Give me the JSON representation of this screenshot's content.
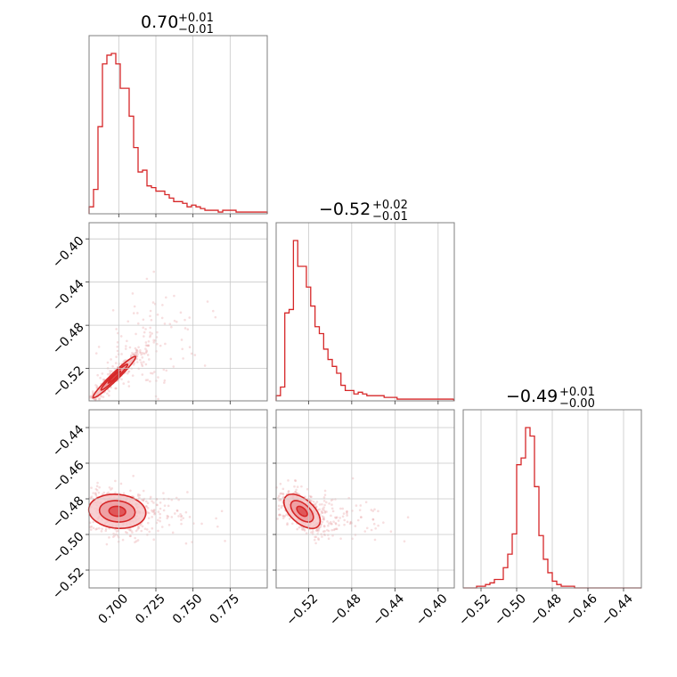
{
  "colors": {
    "series": "#d62728",
    "fill": "#f6c6c8",
    "fill_dark": "#ed9a9e",
    "sample": "#e8a0a3"
  },
  "chart_data": {
    "type": "corner",
    "parameters": [
      {
        "range": [
          0.68,
          0.8
        ],
        "ticks": [
          0.7,
          0.725,
          0.75,
          0.775
        ],
        "tick_labels": [
          "0.700",
          "0.725",
          "0.750",
          "0.775"
        ],
        "summary": {
          "median": "0.70",
          "plus": "+0.01",
          "minus": "−0.01"
        }
      },
      {
        "range": [
          -0.55,
          -0.385
        ],
        "ticks": [
          -0.52,
          -0.48,
          -0.44,
          -0.4
        ],
        "tick_labels": [
          "−0.52",
          "−0.48",
          "−0.44",
          "−0.40"
        ],
        "summary": {
          "median": "−0.52",
          "plus": "+0.02",
          "minus": "−0.01"
        }
      },
      {
        "range": [
          -0.53,
          -0.43
        ],
        "ticks": [
          -0.52,
          -0.5,
          -0.48,
          -0.46,
          -0.44
        ],
        "tick_labels": [
          "−0.52",
          "−0.50",
          "−0.48",
          "−0.46",
          "−0.44"
        ],
        "summary": {
          "median": "−0.49",
          "plus": "+0.01",
          "minus": "−0.00"
        }
      }
    ],
    "histograms": [
      {
        "param": 0,
        "edges_start": 0.68,
        "bin_width": 0.003,
        "counts": [
          0.04,
          0.14,
          0.5,
          0.86,
          0.91,
          0.92,
          0.86,
          0.72,
          0.72,
          0.56,
          0.38,
          0.24,
          0.25,
          0.16,
          0.15,
          0.13,
          0.13,
          0.11,
          0.09,
          0.07,
          0.07,
          0.06,
          0.04,
          0.05,
          0.04,
          0.03,
          0.02,
          0.02,
          0.02,
          0.01,
          0.02,
          0.02,
          0.02,
          0.01,
          0.01,
          0.01,
          0.01,
          0.01,
          0.01,
          0.01
        ]
      },
      {
        "param": 1,
        "edges_start": -0.55,
        "bin_width": 0.004,
        "counts": [
          0.03,
          0.08,
          0.51,
          0.53,
          0.93,
          0.78,
          0.78,
          0.66,
          0.55,
          0.43,
          0.39,
          0.3,
          0.24,
          0.2,
          0.16,
          0.09,
          0.06,
          0.06,
          0.04,
          0.05,
          0.04,
          0.03,
          0.03,
          0.03,
          0.03,
          0.02,
          0.02,
          0.02,
          0.01,
          0.01,
          0.01,
          0.01,
          0.01,
          0.01,
          0.01,
          0.01,
          0.01,
          0.01,
          0.01,
          0.01,
          0.01
        ]
      },
      {
        "param": 2,
        "edges_start": -0.53,
        "bin_width": 0.0025,
        "counts": [
          0,
          0,
          0,
          0.01,
          0.01,
          0.02,
          0.03,
          0.05,
          0.05,
          0.12,
          0.2,
          0.32,
          0.73,
          0.77,
          0.95,
          0.9,
          0.6,
          0.31,
          0.17,
          0.09,
          0.04,
          0.02,
          0.01,
          0.01,
          0.01,
          0,
          0,
          0,
          0,
          0,
          0,
          0,
          0,
          0,
          0,
          0,
          0,
          0,
          0,
          0
        ]
      }
    ],
    "pairs": [
      {
        "x": 0,
        "y": 1,
        "center": [
          0.697,
          -0.528
        ],
        "spread": [
          0.006,
          0.008
        ],
        "correlation": 0.97,
        "tail_to": [
          0.765,
          -0.42
        ]
      },
      {
        "x": 0,
        "y": 2,
        "center": [
          0.699,
          -0.487
        ],
        "spread": [
          0.008,
          0.004
        ],
        "correlation": -0.1,
        "tail_to": [
          0.765,
          -0.492
        ]
      },
      {
        "x": 1,
        "y": 2,
        "center": [
          -0.526,
          -0.487
        ],
        "spread": [
          0.007,
          0.004
        ],
        "correlation": -0.55,
        "tail_to": [
          -0.42,
          -0.495
        ]
      }
    ]
  }
}
